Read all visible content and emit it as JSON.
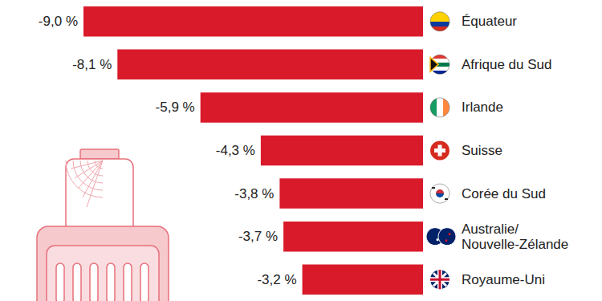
{
  "chart_data": {
    "type": "bar",
    "orientation": "horizontal",
    "categories": [
      "Équateur",
      "Afrique du Sud",
      "Irlande",
      "Suisse",
      "Corée du Sud",
      "Australie/Nouvelle-Zélande",
      "Royaume-Uni"
    ],
    "values": [
      -9.0,
      -8.1,
      -5.9,
      -4.3,
      -3.8,
      -3.7,
      -3.2
    ],
    "value_labels": [
      "-9,0 %",
      "-8,1 %",
      "-5,9 %",
      "-4,3 %",
      "-3,8 %",
      "-3,7 %",
      "-3,2 %"
    ],
    "color": "#d91a2a",
    "xlim": [
      -9,
      0
    ],
    "data_labels": true,
    "tick_labels": "y",
    "grid": false
  }
}
